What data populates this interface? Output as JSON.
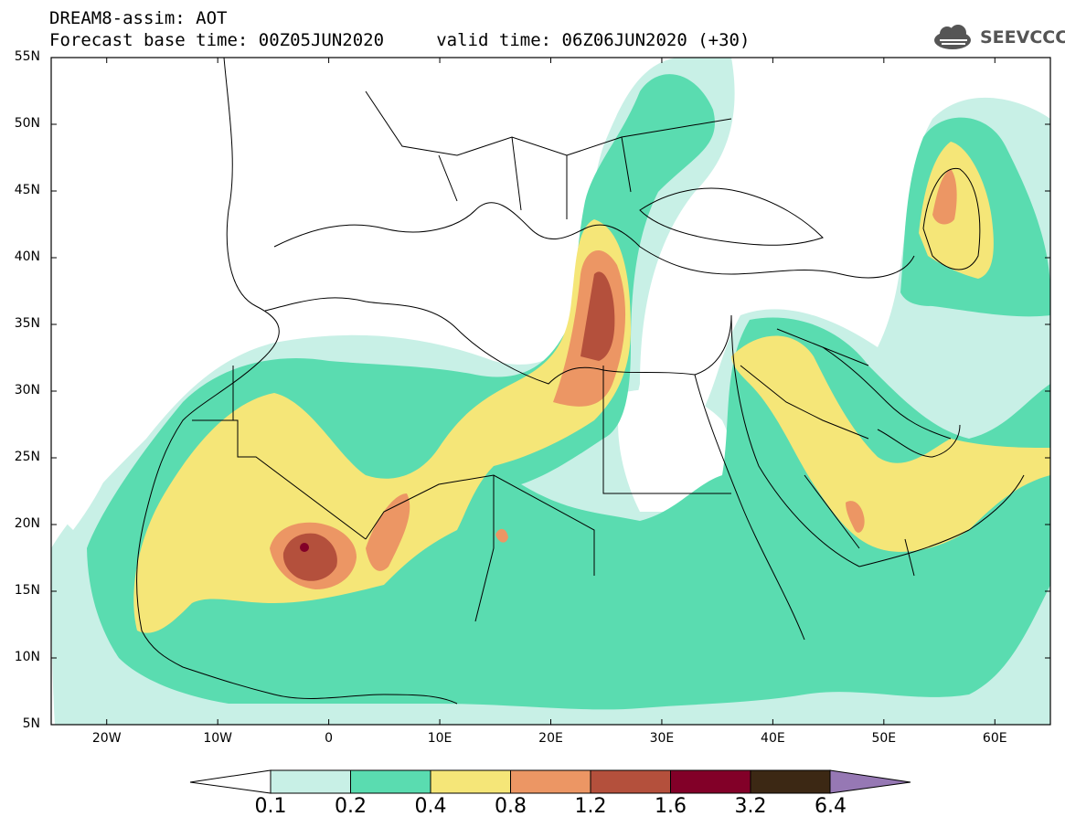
{
  "header": {
    "line1": "DREAM8-assim: AOT",
    "line2": "Forecast base time: 00Z05JUN2020     valid time: 06Z06JUN2020 (+30)",
    "logo_text": "SEEVCCC"
  },
  "map": {
    "lon_range": [
      -25,
      65
    ],
    "lat_range": [
      5,
      55
    ],
    "lat_ticks": [
      {
        "v": 55,
        "label": "55N"
      },
      {
        "v": 50,
        "label": "50N"
      },
      {
        "v": 45,
        "label": "45N"
      },
      {
        "v": 40,
        "label": "40N"
      },
      {
        "v": 35,
        "label": "35N"
      },
      {
        "v": 30,
        "label": "30N"
      },
      {
        "v": 25,
        "label": "25N"
      },
      {
        "v": 20,
        "label": "20N"
      },
      {
        "v": 15,
        "label": "15N"
      },
      {
        "v": 10,
        "label": "10N"
      },
      {
        "v": 5,
        "label": "5N"
      }
    ],
    "lon_ticks": [
      {
        "v": -20,
        "label": "20W"
      },
      {
        "v": -10,
        "label": "10W"
      },
      {
        "v": 0,
        "label": "0"
      },
      {
        "v": 10,
        "label": "10E"
      },
      {
        "v": 20,
        "label": "20E"
      },
      {
        "v": 30,
        "label": "30E"
      },
      {
        "v": 40,
        "label": "40E"
      },
      {
        "v": 50,
        "label": "50E"
      },
      {
        "v": 60,
        "label": "60E"
      }
    ]
  },
  "colorbar": {
    "levels": [
      "0.1",
      "0.2",
      "0.4",
      "0.8",
      "1.2",
      "1.6",
      "3.2",
      "6.4"
    ],
    "colors": [
      "#c8f0e6",
      "#5adcb0",
      "#f5e678",
      "#ec9664",
      "#b4503c",
      "#820028",
      "#3c2814",
      "#9678b4"
    ]
  }
}
